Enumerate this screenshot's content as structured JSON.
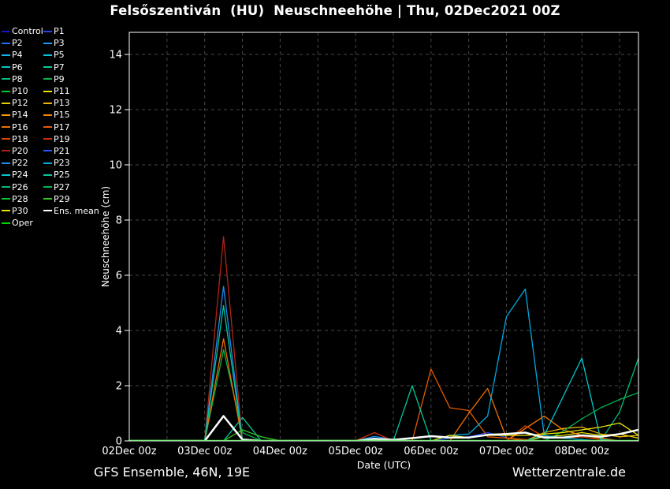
{
  "title": "Felsőszentiván  (HU)  Neuschneehöhe | Thu, 02Dec2021 00Z",
  "footer": {
    "left": "GFS Ensemble, 46N, 19E",
    "right": "Wetterzentrale.de"
  },
  "chart_data": {
    "type": "line",
    "title": "Felsőszentiván  (HU)  Neuschneehöhe | Thu, 02Dec2021 00Z",
    "xlabel": "Date (UTC)",
    "ylabel": "Neuschneehöhe (cm)",
    "background_color": "#000000",
    "x_unit": "hours since 02Dec2021 00Z",
    "xlim_hours": [
      0,
      162
    ],
    "ylim": [
      0,
      14.8
    ],
    "y_ticks": [
      0,
      2,
      4,
      6,
      8,
      10,
      12,
      14
    ],
    "x_ticks": [
      {
        "hour": 0,
        "label": "02Dec 00z"
      },
      {
        "hour": 24,
        "label": "03Dec 00z"
      },
      {
        "hour": 48,
        "label": "04Dec 00z"
      },
      {
        "hour": 72,
        "label": "05Dec 00z"
      },
      {
        "hour": 96,
        "label": "06Dec 00z"
      },
      {
        "hour": 120,
        "label": "07Dec 00z"
      },
      {
        "hour": 144,
        "label": "08Dec 00z"
      }
    ],
    "grid": {
      "style": "dashed",
      "color": "#474747",
      "x_step_hours": 12,
      "y_step_cm": 2
    },
    "legend": {
      "position": "top-left",
      "col1": [
        "Control",
        "P2",
        "P4",
        "P6",
        "P8",
        "P10",
        "P12",
        "P14",
        "P16",
        "P18",
        "P20",
        "P22",
        "P24",
        "P26",
        "P28",
        "P30",
        "Oper"
      ],
      "col2": [
        "P1",
        "P3",
        "P5",
        "P7",
        "P9",
        "P11",
        "P13",
        "P15",
        "P17",
        "P19",
        "P21",
        "P23",
        "P25",
        "P27",
        "P29",
        "Ens. mean"
      ]
    },
    "series": [
      {
        "name": "Control",
        "color": "#1414c8",
        "width": 1.3,
        "points": [
          [
            0,
            0
          ],
          [
            162,
            0
          ]
        ]
      },
      {
        "name": "P1",
        "color": "#1e46eb",
        "width": 1.3,
        "points": [
          [
            0,
            0
          ],
          [
            96,
            0
          ],
          [
            102,
            0.1
          ],
          [
            108,
            0.15
          ],
          [
            114,
            0.3
          ],
          [
            120,
            0.12
          ],
          [
            126,
            0
          ],
          [
            162,
            0
          ]
        ]
      },
      {
        "name": "P2",
        "color": "#1e6eff",
        "width": 1.3,
        "points": [
          [
            0,
            0
          ],
          [
            162,
            0
          ]
        ]
      },
      {
        "name": "P3",
        "color": "#1e96ff",
        "width": 1.3,
        "points": [
          [
            0,
            0
          ],
          [
            72,
            0
          ],
          [
            78,
            0.16
          ],
          [
            84,
            0.05
          ],
          [
            90,
            0
          ],
          [
            162,
            0
          ]
        ]
      },
      {
        "name": "P4",
        "color": "#14b4f0",
        "width": 1.3,
        "points": [
          [
            0,
            0
          ],
          [
            162,
            0
          ]
        ]
      },
      {
        "name": "P5",
        "color": "#00c8dc",
        "width": 1.3,
        "points": [
          [
            0,
            0
          ],
          [
            72,
            0
          ],
          [
            78,
            0.1
          ],
          [
            84,
            0
          ],
          [
            162,
            0
          ]
        ]
      },
      {
        "name": "P6",
        "color": "#00c8c8",
        "width": 1.3,
        "points": [
          [
            0,
            0
          ],
          [
            162,
            0
          ]
        ]
      },
      {
        "name": "P7",
        "color": "#00c89b",
        "width": 1.3,
        "points": [
          [
            0,
            0
          ],
          [
            30,
            0
          ],
          [
            36,
            0.85
          ],
          [
            42,
            0
          ],
          [
            162,
            0
          ]
        ]
      },
      {
        "name": "P8",
        "color": "#00be78",
        "width": 1.3,
        "points": [
          [
            0,
            0
          ],
          [
            150,
            0
          ],
          [
            156,
            1.05
          ],
          [
            162,
            3.0
          ]
        ]
      },
      {
        "name": "P9",
        "color": "#00b450",
        "width": 1.3,
        "points": [
          [
            0,
            0
          ],
          [
            24,
            0
          ],
          [
            30,
            3.3
          ],
          [
            36,
            0.3
          ],
          [
            42,
            0
          ],
          [
            162,
            0
          ]
        ]
      },
      {
        "name": "P10",
        "color": "#00c828",
        "width": 1.3,
        "points": [
          [
            0,
            0
          ],
          [
            162,
            0
          ]
        ]
      },
      {
        "name": "P11",
        "color": "#e6e600",
        "width": 1.3,
        "points": [
          [
            0,
            0
          ],
          [
            126,
            0
          ],
          [
            132,
            0.15
          ],
          [
            138,
            0.2
          ],
          [
            144,
            0.3
          ],
          [
            150,
            0.2
          ],
          [
            156,
            0.25
          ],
          [
            162,
            0.1
          ]
        ]
      },
      {
        "name": "P12",
        "color": "#e6cd00",
        "width": 1.3,
        "points": [
          [
            0,
            0
          ],
          [
            162,
            0
          ]
        ]
      },
      {
        "name": "P13",
        "color": "#f0b400",
        "width": 1.3,
        "points": [
          [
            0,
            0
          ],
          [
            126,
            0
          ],
          [
            132,
            0.3
          ],
          [
            138,
            0.45
          ],
          [
            144,
            0.5
          ],
          [
            150,
            0.25
          ],
          [
            156,
            0.15
          ],
          [
            162,
            0.2
          ]
        ]
      },
      {
        "name": "P14",
        "color": "#ff9b00",
        "width": 1.3,
        "points": [
          [
            0,
            0
          ],
          [
            162,
            0
          ]
        ]
      },
      {
        "name": "P15",
        "color": "#ff8200",
        "width": 1.3,
        "points": [
          [
            0,
            0
          ],
          [
            120,
            0
          ],
          [
            126,
            0.45
          ],
          [
            132,
            0.9
          ],
          [
            138,
            0.4
          ],
          [
            144,
            0.2
          ],
          [
            150,
            0.1
          ],
          [
            156,
            0
          ],
          [
            162,
            0
          ]
        ]
      },
      {
        "name": "P16",
        "color": "#f06e00",
        "width": 1.3,
        "points": [
          [
            0,
            0
          ],
          [
            24,
            0
          ],
          [
            30,
            3.7
          ],
          [
            36,
            0
          ],
          [
            102,
            0
          ],
          [
            108,
            1.0
          ],
          [
            114,
            1.9
          ],
          [
            120,
            0.1
          ],
          [
            126,
            0
          ],
          [
            162,
            0
          ]
        ]
      },
      {
        "name": "P17",
        "color": "#e65a00",
        "width": 1.3,
        "points": [
          [
            0,
            0
          ],
          [
            90,
            0
          ],
          [
            96,
            2.6
          ],
          [
            102,
            1.2
          ],
          [
            108,
            1.1
          ],
          [
            114,
            0.15
          ],
          [
            120,
            0.1
          ],
          [
            126,
            0.05
          ],
          [
            132,
            0
          ],
          [
            162,
            0
          ]
        ]
      },
      {
        "name": "P18",
        "color": "#dc4600",
        "width": 1.3,
        "points": [
          [
            0,
            0
          ],
          [
            120,
            0
          ],
          [
            126,
            0.55
          ],
          [
            132,
            0.15
          ],
          [
            138,
            0.1
          ],
          [
            144,
            0.15
          ],
          [
            150,
            0.05
          ],
          [
            156,
            0
          ],
          [
            162,
            0
          ]
        ]
      },
      {
        "name": "P19",
        "color": "#cd3200",
        "width": 1.3,
        "points": [
          [
            0,
            0
          ],
          [
            72,
            0
          ],
          [
            78,
            0.3
          ],
          [
            84,
            0
          ],
          [
            162,
            0
          ]
        ]
      },
      {
        "name": "P20",
        "color": "#b42314",
        "width": 1.3,
        "points": [
          [
            0,
            0
          ],
          [
            24,
            0
          ],
          [
            30,
            7.4
          ],
          [
            36,
            0
          ],
          [
            162,
            0
          ]
        ]
      },
      {
        "name": "P21",
        "color": "#1e5aff",
        "width": 1.3,
        "points": [
          [
            0,
            0
          ],
          [
            162,
            0
          ]
        ]
      },
      {
        "name": "P22",
        "color": "#1e8cf0",
        "width": 1.3,
        "points": [
          [
            0,
            0
          ],
          [
            24,
            0
          ],
          [
            30,
            5.6
          ],
          [
            36,
            0
          ],
          [
            162,
            0
          ]
        ]
      },
      {
        "name": "P23",
        "color": "#00aae1",
        "width": 1.3,
        "points": [
          [
            0,
            0
          ],
          [
            96,
            0
          ],
          [
            102,
            0.2
          ],
          [
            108,
            0.25
          ],
          [
            114,
            0.9
          ],
          [
            120,
            4.5
          ],
          [
            126,
            5.5
          ],
          [
            132,
            0.2
          ],
          [
            138,
            0.1
          ],
          [
            144,
            0.05
          ],
          [
            150,
            0
          ],
          [
            162,
            0
          ]
        ]
      },
      {
        "name": "P24",
        "color": "#00c8d2",
        "width": 1.3,
        "points": [
          [
            0,
            0
          ],
          [
            126,
            0
          ],
          [
            132,
            0.2
          ],
          [
            138,
            1.6
          ],
          [
            144,
            3.0
          ],
          [
            150,
            0.05
          ],
          [
            156,
            0
          ],
          [
            162,
            0
          ]
        ]
      },
      {
        "name": "P25",
        "color": "#00c89b",
        "width": 1.3,
        "points": [
          [
            0,
            0
          ],
          [
            24,
            0
          ],
          [
            30,
            4.9
          ],
          [
            36,
            0
          ],
          [
            84,
            0
          ],
          [
            90,
            2.0
          ],
          [
            96,
            0
          ],
          [
            162,
            0
          ]
        ]
      },
      {
        "name": "P26",
        "color": "#00b978",
        "width": 1.3,
        "points": [
          [
            0,
            0
          ],
          [
            162,
            0
          ]
        ]
      },
      {
        "name": "P27",
        "color": "#00b450",
        "width": 1.3,
        "points": [
          [
            0,
            0
          ],
          [
            132,
            0
          ],
          [
            138,
            0.35
          ],
          [
            144,
            0.8
          ],
          [
            150,
            1.2
          ],
          [
            156,
            1.5
          ],
          [
            162,
            1.75
          ]
        ]
      },
      {
        "name": "P28",
        "color": "#00c828",
        "width": 1.3,
        "points": [
          [
            0,
            0
          ],
          [
            162,
            0
          ]
        ]
      },
      {
        "name": "P29",
        "color": "#32cd1e",
        "width": 1.3,
        "points": [
          [
            0,
            0
          ],
          [
            30,
            0
          ],
          [
            36,
            0.4
          ],
          [
            42,
            0.15
          ],
          [
            48,
            0
          ],
          [
            162,
            0
          ]
        ]
      },
      {
        "name": "P30",
        "color": "#e6e600",
        "width": 1.3,
        "points": [
          [
            0,
            0
          ],
          [
            96,
            0
          ],
          [
            102,
            0.2
          ],
          [
            108,
            0.12
          ],
          [
            114,
            0.2
          ],
          [
            120,
            0.2
          ],
          [
            126,
            0.2
          ],
          [
            132,
            0.25
          ],
          [
            138,
            0.3
          ],
          [
            144,
            0.4
          ],
          [
            150,
            0.5
          ],
          [
            156,
            0.65
          ],
          [
            162,
            0.2
          ]
        ]
      },
      {
        "name": "Ens. mean",
        "color": "#ffffff",
        "width": 2.5,
        "points": [
          [
            0,
            0
          ],
          [
            24,
            0
          ],
          [
            30,
            0.9
          ],
          [
            36,
            0.05
          ],
          [
            42,
            0
          ],
          [
            72,
            0
          ],
          [
            78,
            0.07
          ],
          [
            84,
            0.04
          ],
          [
            90,
            0.1
          ],
          [
            96,
            0.17
          ],
          [
            102,
            0.12
          ],
          [
            108,
            0.12
          ],
          [
            114,
            0.22
          ],
          [
            120,
            0.25
          ],
          [
            126,
            0.3
          ],
          [
            132,
            0.12
          ],
          [
            138,
            0.12
          ],
          [
            144,
            0.2
          ],
          [
            150,
            0.15
          ],
          [
            156,
            0.25
          ],
          [
            162,
            0.4
          ]
        ]
      },
      {
        "name": "Oper",
        "color": "#00d200",
        "width": 2.5,
        "points": [
          [
            0,
            0
          ],
          [
            162,
            0
          ]
        ]
      }
    ]
  }
}
